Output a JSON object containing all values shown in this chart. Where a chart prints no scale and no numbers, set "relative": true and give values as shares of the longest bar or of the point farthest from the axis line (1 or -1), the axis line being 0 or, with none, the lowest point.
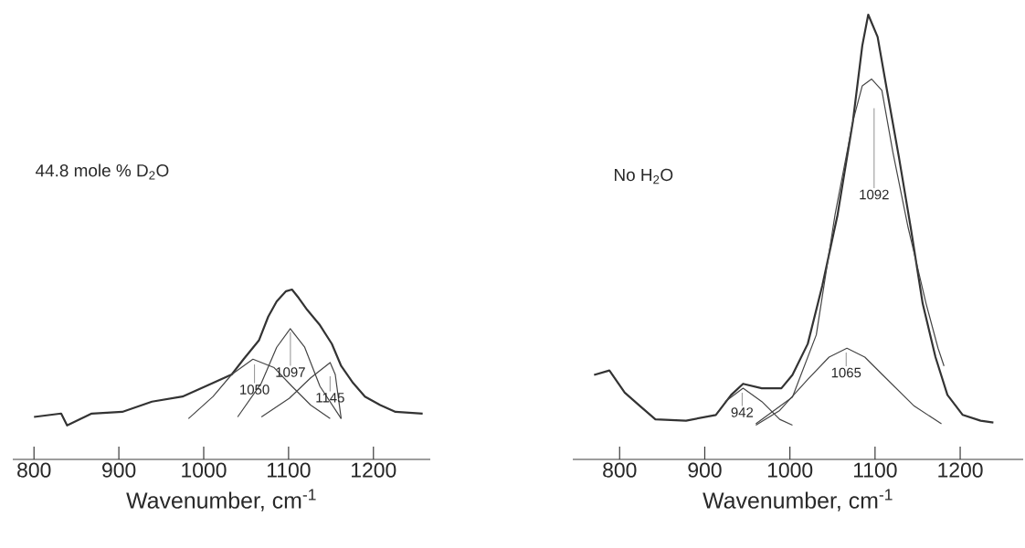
{
  "chart_data": [
    {
      "type": "line",
      "title": "44.8 mole % D$_{2}$O",
      "xlabel": "Wavenumber, cm$^{-1}$",
      "relative": true,
      "xlim": [
        775,
        1267
      ],
      "xticks": [
        800,
        900,
        1000,
        1100,
        1200
      ],
      "series": [
        {
          "color": "#333333",
          "x": [
            800,
            832,
            839,
            868,
            904,
            939,
            975,
            1011,
            1033,
            1047,
            1065,
            1076,
            1086,
            1097,
            1104,
            1112,
            1122,
            1137,
            1151,
            1162,
            1176,
            1190,
            1208,
            1226,
            1258
          ],
          "values": [
            0.25,
            0.27,
            0.2,
            0.27,
            0.28,
            0.34,
            0.37,
            0.45,
            0.5,
            0.59,
            0.7,
            0.84,
            0.93,
            0.99,
            1.0,
            0.95,
            0.88,
            0.79,
            0.68,
            0.55,
            0.45,
            0.37,
            0.32,
            0.28,
            0.27
          ]
        },
        {
          "color": "#444444",
          "x": [
            982,
            1011,
            1033,
            1058,
            1083,
            1104,
            1126,
            1149
          ],
          "values": [
            0.24,
            0.37,
            0.5,
            0.59,
            0.54,
            0.43,
            0.32,
            0.24
          ]
        },
        {
          "color": "#444444",
          "x": [
            1040,
            1068,
            1086,
            1102,
            1119,
            1137,
            1162
          ],
          "values": [
            0.25,
            0.45,
            0.66,
            0.77,
            0.66,
            0.43,
            0.24
          ]
        },
        {
          "color": "#444444",
          "x": [
            1068,
            1101,
            1126,
            1149,
            1155,
            1162
          ],
          "values": [
            0.25,
            0.36,
            0.48,
            0.57,
            0.5,
            0.24
          ]
        }
      ],
      "annotations": [
        "1050",
        "1097",
        "1145"
      ]
    },
    {
      "type": "line",
      "title": "No H$_{2}$O",
      "xlabel": "Wavenumber, cm$^{-1}$",
      "relative": true,
      "xlim": [
        745,
        1274
      ],
      "xticks": [
        800,
        900,
        1000,
        1100,
        1200
      ],
      "series": [
        {
          "color": "#333333",
          "x": [
            770,
            788,
            806,
            824,
            842,
            878,
            913,
            931,
            945,
            967,
            990,
            1003,
            1021,
            1038,
            1056,
            1074,
            1085,
            1092,
            1103,
            1114,
            1128,
            1142,
            1156,
            1171,
            1185,
            1203,
            1224,
            1239
          ],
          "values": [
            0.19,
            0.2,
            0.15,
            0.12,
            0.09,
            0.087,
            0.1,
            0.145,
            0.17,
            0.16,
            0.16,
            0.19,
            0.26,
            0.39,
            0.55,
            0.76,
            0.93,
            1.0,
            0.95,
            0.83,
            0.68,
            0.52,
            0.35,
            0.23,
            0.145,
            0.1,
            0.087,
            0.083
          ]
        },
        {
          "color": "#444444",
          "x": [
            924,
            945,
            967,
            988,
            1003
          ],
          "values": [
            0.13,
            0.16,
            0.13,
            0.09,
            0.077
          ]
        },
        {
          "color": "#444444",
          "x": [
            960,
            988,
            1021,
            1046,
            1067,
            1088,
            1109,
            1146,
            1178
          ],
          "values": [
            0.077,
            0.11,
            0.18,
            0.23,
            0.25,
            0.23,
            0.19,
            0.12,
            0.08
          ]
        },
        {
          "color": "#444444",
          "x": [
            960,
            1003,
            1031,
            1053,
            1074,
            1085,
            1096,
            1108,
            1121,
            1139,
            1160,
            1174,
            1181
          ],
          "values": [
            0.08,
            0.14,
            0.28,
            0.55,
            0.76,
            0.84,
            0.855,
            0.83,
            0.69,
            0.52,
            0.35,
            0.25,
            0.21
          ]
        }
      ],
      "annotations": [
        "1092",
        "1065",
        "942"
      ]
    }
  ]
}
